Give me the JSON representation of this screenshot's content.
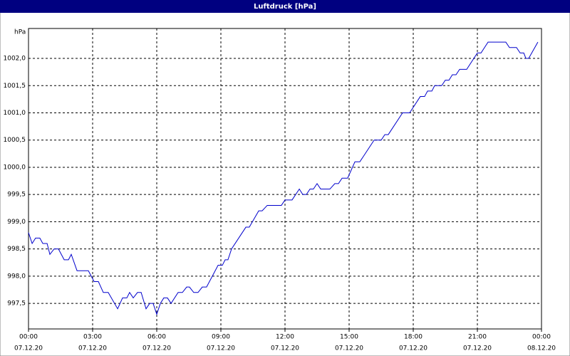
{
  "chart_data": {
    "type": "line",
    "title": "Luftdruck [hPa]",
    "y_label": "hPa",
    "x": [
      0,
      0.17,
      0.33,
      0.53,
      0.67,
      0.87,
      1,
      1.2,
      1.4,
      1.67,
      1.87,
      2,
      2.27,
      2.8,
      3.07,
      3.27,
      3.5,
      3.73,
      4.17,
      4.4,
      4.6,
      4.73,
      4.9,
      5.1,
      5.27,
      5.5,
      5.67,
      5.83,
      6,
      6.17,
      6.33,
      6.5,
      6.67,
      7,
      7.2,
      7.4,
      7.53,
      7.73,
      7.93,
      8.13,
      8.33,
      8.87,
      9.07,
      9.2,
      9.33,
      9.5,
      10.17,
      10.33,
      10.77,
      10.93,
      11.17,
      11.83,
      12,
      12.33,
      12.67,
      12.83,
      13,
      13.17,
      13.33,
      13.5,
      13.67,
      14.1,
      14.33,
      14.5,
      14.67,
      14.93,
      15.27,
      15.5,
      16.17,
      16.5,
      16.67,
      16.83,
      17.5,
      17.83,
      18.33,
      18.53,
      18.67,
      18.87,
      19,
      19.33,
      19.5,
      19.67,
      19.83,
      20,
      20.17,
      20.5,
      21,
      21.17,
      21.5,
      22.33,
      22.5,
      22.83,
      23,
      23.17,
      23.27,
      23.4,
      23.83
    ],
    "series": [
      {
        "name": "Luftdruck",
        "color": "#0000cc",
        "values": [
          998.8,
          998.6,
          998.7,
          998.7,
          998.6,
          998.6,
          998.4,
          998.5,
          998.5,
          998.3,
          998.3,
          998.4,
          998.1,
          998.1,
          997.9,
          997.9,
          997.7,
          997.7,
          997.4,
          997.6,
          997.6,
          997.7,
          997.6,
          997.7,
          997.7,
          997.4,
          997.5,
          997.5,
          997.3,
          997.5,
          997.6,
          997.6,
          997.5,
          997.7,
          997.7,
          997.8,
          997.8,
          997.7,
          997.7,
          997.8,
          997.8,
          998.2,
          998.2,
          998.3,
          998.3,
          998.5,
          998.9,
          998.9,
          999.2,
          999.2,
          999.3,
          999.3,
          999.4,
          999.4,
          999.6,
          999.5,
          999.5,
          999.6,
          999.6,
          999.7,
          999.6,
          999.6,
          999.7,
          999.7,
          999.8,
          999.8,
          1000.1,
          1000.1,
          1000.5,
          1000.5,
          1000.6,
          1000.6,
          1001.0,
          1001.0,
          1001.3,
          1001.3,
          1001.4,
          1001.4,
          1001.5,
          1001.5,
          1001.6,
          1001.6,
          1001.7,
          1001.7,
          1001.8,
          1001.8,
          1002.1,
          1002.1,
          1002.3,
          1002.3,
          1002.2,
          1002.2,
          1002.1,
          1002.1,
          1002.0,
          1002.0,
          1002.3
        ]
      }
    ],
    "xlim": [
      0,
      24
    ],
    "xticks": [
      {
        "value": 0,
        "label": "00:00",
        "date": "07.12.20"
      },
      {
        "value": 3,
        "label": "03:00",
        "date": "07.12.20"
      },
      {
        "value": 6,
        "label": "06:00",
        "date": "07.12.20"
      },
      {
        "value": 9,
        "label": "09:00",
        "date": "07.12.20"
      },
      {
        "value": 12,
        "label": "12:00",
        "date": "07.12.20"
      },
      {
        "value": 15,
        "label": "15:00",
        "date": "07.12.20"
      },
      {
        "value": 18,
        "label": "18:00",
        "date": "07.12.20"
      },
      {
        "value": 21,
        "label": "21:00",
        "date": "07.12.20"
      },
      {
        "value": 24,
        "label": "00:00",
        "date": "08.12.20"
      }
    ],
    "ylim": [
      997.03,
      1002.55
    ],
    "yticks": [
      {
        "value": 997.5,
        "label": "997,5"
      },
      {
        "value": 998,
        "label": "998,0"
      },
      {
        "value": 998.5,
        "label": "998,5"
      },
      {
        "value": 999,
        "label": "999,0"
      },
      {
        "value": 999.5,
        "label": "999,5"
      },
      {
        "value": 1000,
        "label": "1000,0"
      },
      {
        "value": 1000.5,
        "label": "1000,5"
      },
      {
        "value": 1001,
        "label": "1001,0"
      },
      {
        "value": 1001.5,
        "label": "1001,5"
      },
      {
        "value": 1002,
        "label": "1002,0"
      }
    ],
    "grid": true
  }
}
